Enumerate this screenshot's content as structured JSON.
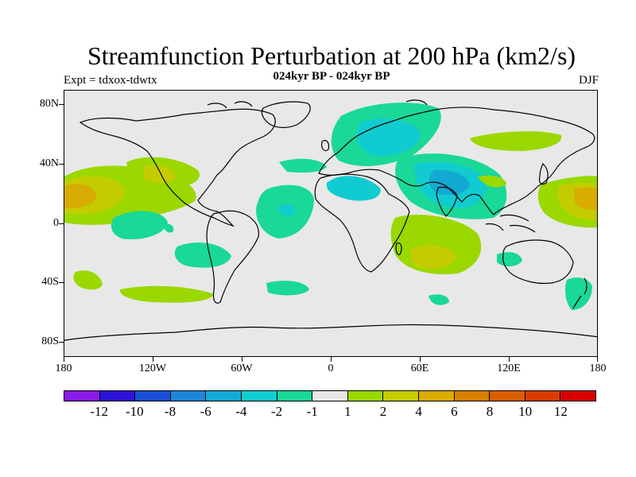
{
  "title": "Streamfunction Perturbation at 200 hPa (km2/s)",
  "subtitle": "024kyr BP - 024kyr BP",
  "left_label": "Expt = tdxox-tdwtx",
  "right_label": "DJF",
  "y_axis_labels": [
    "80N",
    "40N",
    "0",
    "40S",
    "80S"
  ],
  "x_axis_labels": [
    "180",
    "120W",
    "60W",
    "0",
    "60E",
    "120E",
    "180"
  ],
  "colorbar": {
    "colors": [
      "#8a1be6",
      "#2d12d8",
      "#1c4fd6",
      "#1e86d8",
      "#12aad2",
      "#10ccd0",
      "#19d898",
      "#e8e8e8",
      "#9ad800",
      "#c4cc00",
      "#d8ac00",
      "#d88000",
      "#d85e00",
      "#d83c00",
      "#d80000"
    ],
    "labels": [
      "-12",
      "-10",
      "-8",
      "-6",
      "-4",
      "-2",
      "-1",
      "1",
      "2",
      "4",
      "6",
      "8",
      "10",
      "12"
    ]
  },
  "legend_colors": {
    "neg_light": "#19d898",
    "neg_mid": "#10ccd0",
    "neg_strong": "#12aad2",
    "pos_light": "#9ad800",
    "pos_mid": "#c4cc00",
    "pos_strong": "#d8ac00"
  }
}
